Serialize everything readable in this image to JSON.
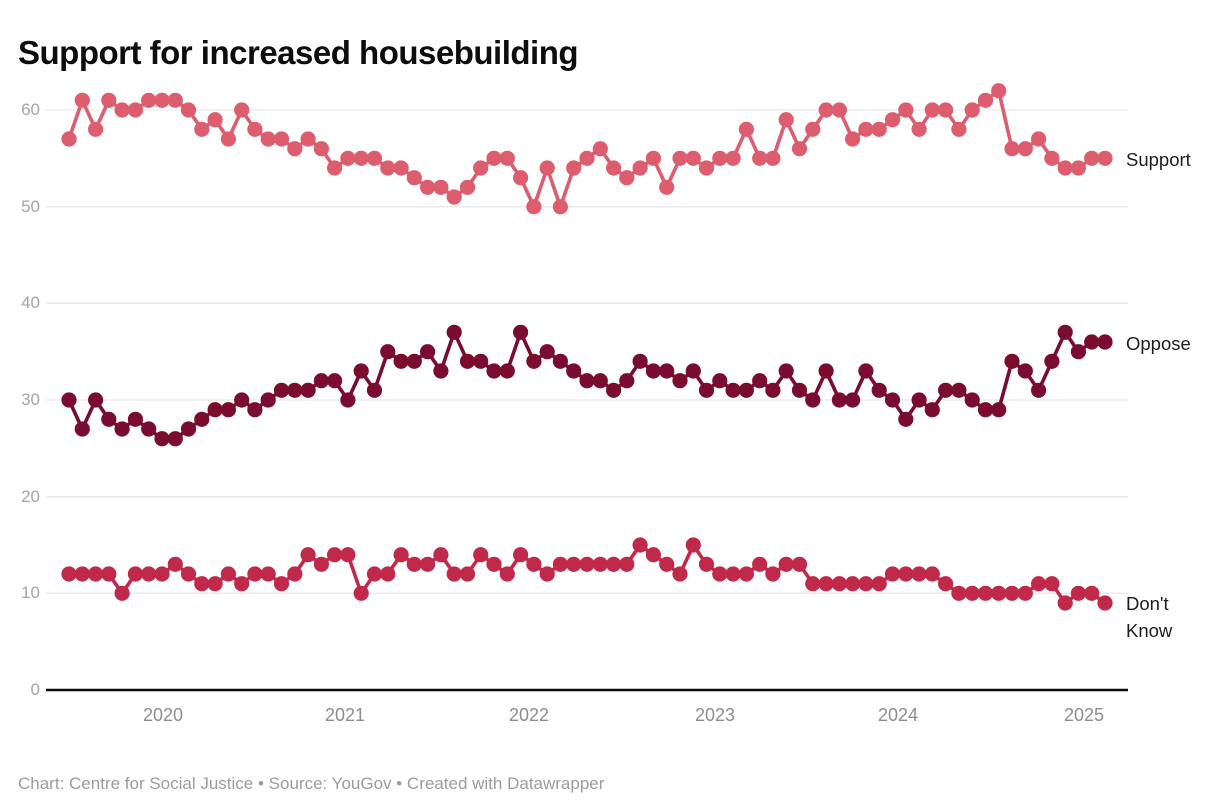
{
  "header": {
    "title": "Support for increased housebuilding"
  },
  "footer": {
    "text": "Chart: Centre for Social Justice • Source: YouGov • Created with Datawrapper"
  },
  "chart_data": {
    "type": "line",
    "title": "Support for increased housebuilding",
    "grid": "horizontal",
    "legend_position": "right-of-line-end",
    "x_axis": {
      "tick_labels": [
        "2020",
        "2021",
        "2022",
        "2023",
        "2024",
        "2025"
      ]
    },
    "y_axis": {
      "tick_labels": [
        "0",
        "10",
        "20",
        "30",
        "40",
        "50",
        "60"
      ],
      "range": [
        0,
        62
      ]
    },
    "axis_colors": {
      "gridline": "#e9e9e9",
      "baseline": "#0b0b0b",
      "ytick_text": "#a5a5a5",
      "xtick_text": "#8d8d8d"
    },
    "series": [
      {
        "name": "Support",
        "label": "Support",
        "color": "#dd5c6e",
        "values": [
          57,
          61,
          58,
          61,
          60,
          60,
          61,
          61,
          61,
          60,
          58,
          59,
          57,
          60,
          58,
          57,
          57,
          56,
          57,
          56,
          54,
          55,
          55,
          55,
          54,
          54,
          53,
          52,
          52,
          51,
          52,
          54,
          55,
          55,
          53,
          50,
          54,
          50,
          54,
          55,
          56,
          54,
          53,
          54,
          55,
          52,
          55,
          55,
          54,
          55,
          55,
          58,
          55,
          55,
          59,
          56,
          58,
          60,
          60,
          57,
          58,
          58,
          59,
          60,
          58,
          60,
          60,
          58,
          60,
          61,
          62,
          56,
          56,
          57,
          55,
          54,
          54,
          55,
          55
        ]
      },
      {
        "name": "Oppose",
        "label": "Oppose",
        "color": "#7a0c2f",
        "values": [
          30,
          27,
          30,
          28,
          27,
          28,
          27,
          26,
          26,
          27,
          28,
          29,
          29,
          30,
          29,
          30,
          31,
          31,
          31,
          32,
          32,
          30,
          33,
          31,
          35,
          34,
          34,
          35,
          33,
          37,
          34,
          34,
          33,
          33,
          37,
          34,
          35,
          34,
          33,
          32,
          32,
          31,
          32,
          34,
          33,
          33,
          32,
          33,
          31,
          32,
          31,
          31,
          32,
          31,
          33,
          31,
          30,
          33,
          30,
          30,
          33,
          31,
          30,
          28,
          30,
          29,
          31,
          31,
          30,
          29,
          29,
          34,
          33,
          31,
          34,
          37,
          35,
          36,
          36
        ]
      },
      {
        "name": "Don't Know",
        "label": "Don't Know",
        "color": "#c1294b",
        "values": [
          12,
          12,
          12,
          12,
          10,
          12,
          12,
          12,
          13,
          12,
          11,
          11,
          12,
          11,
          12,
          12,
          11,
          12,
          14,
          13,
          14,
          14,
          10,
          12,
          12,
          14,
          13,
          13,
          14,
          12,
          12,
          14,
          13,
          12,
          14,
          13,
          12,
          13,
          13,
          13,
          13,
          13,
          13,
          15,
          14,
          13,
          12,
          15,
          13,
          12,
          12,
          12,
          13,
          12,
          13,
          13,
          11,
          11,
          11,
          11,
          11,
          11,
          12,
          12,
          12,
          12,
          11,
          10,
          10,
          10,
          10,
          10,
          10,
          11,
          11,
          9,
          10,
          10,
          9
        ]
      }
    ]
  }
}
